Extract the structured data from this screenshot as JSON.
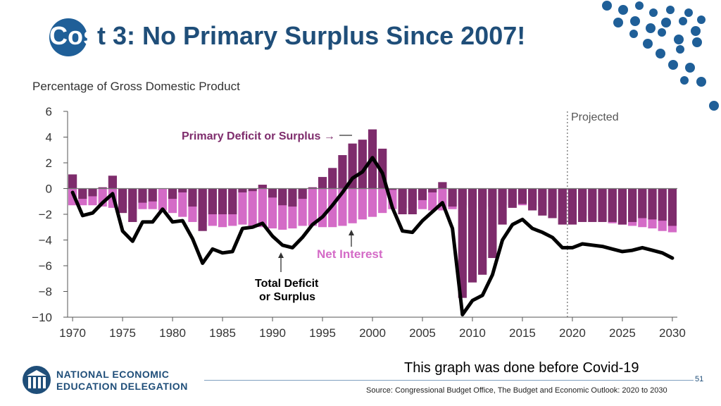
{
  "slide": {
    "title_first": "Cos",
    "title_rest": "t 3: No Primary Surplus Since 2007!",
    "note": "This graph was done before Covid-19",
    "page_number": "51",
    "source": "Source: Congressional Budget Office, The Budget and Economic Outlook: 2020 to 2030",
    "logo_line1": "NATIONAL ECONOMIC",
    "logo_line2": "EDUCATION DELEGATION",
    "colors": {
      "title": "#1f4e79",
      "badge": "#1f5f98",
      "dots": "#1f5f98"
    }
  },
  "chart_data": {
    "type": "bar",
    "ylabel": "Percentage of Gross Domestic Product",
    "ylim": [
      -10,
      6
    ],
    "yticks": [
      6,
      4,
      2,
      0,
      -2,
      -4,
      -6,
      -8,
      -10
    ],
    "ytick_labels": [
      "6",
      "4",
      "2",
      "0",
      "−2",
      "−4",
      "−6",
      "−8",
      "−10"
    ],
    "xticks": [
      1970,
      1975,
      1980,
      1985,
      1990,
      1995,
      2000,
      2005,
      2010,
      2015,
      2020,
      2025,
      2030
    ],
    "xlim": [
      1969.5,
      2030.5
    ],
    "projected_from": 2019.5,
    "projected_label": "Projected",
    "stacked": true,
    "years": [
      1970,
      1971,
      1972,
      1973,
      1974,
      1975,
      1976,
      1977,
      1978,
      1979,
      1980,
      1981,
      1982,
      1983,
      1984,
      1985,
      1986,
      1987,
      1988,
      1989,
      1990,
      1991,
      1992,
      1993,
      1994,
      1995,
      1996,
      1997,
      1998,
      1999,
      2000,
      2001,
      2002,
      2003,
      2004,
      2005,
      2006,
      2007,
      2008,
      2009,
      2010,
      2011,
      2012,
      2013,
      2014,
      2015,
      2016,
      2017,
      2018,
      2019,
      2020,
      2021,
      2022,
      2023,
      2024,
      2025,
      2026,
      2027,
      2028,
      2029,
      2030
    ],
    "series": [
      {
        "name": "Net Interest",
        "color": "#d46bc7",
        "values": [
          -1.3,
          -1.3,
          -1.3,
          -1.4,
          -1.5,
          -1.5,
          -1.6,
          -1.6,
          -1.6,
          -1.7,
          -1.9,
          -2.2,
          -2.6,
          -2.6,
          -2.9,
          -3.0,
          -2.9,
          -2.8,
          -2.9,
          -3.0,
          -3.1,
          -3.2,
          -3.1,
          -2.9,
          -2.9,
          -3.0,
          -3.0,
          -2.9,
          -2.7,
          -2.4,
          -2.2,
          -1.9,
          -1.6,
          -1.5,
          -1.5,
          -1.6,
          -1.7,
          -1.7,
          -1.6,
          -1.3,
          -1.5,
          -1.6,
          -1.4,
          -1.3,
          -1.3,
          -1.3,
          -1.3,
          -1.4,
          -1.6,
          -1.8,
          -1.9,
          -2.1,
          -2.3,
          -2.5,
          -2.7,
          -2.8,
          -2.9,
          -3.0,
          -3.1,
          -3.3,
          -3.4
        ]
      },
      {
        "name": "Primary Deficit or Surplus",
        "color": "#7e2c6c",
        "values": [
          1.1,
          -0.8,
          -0.6,
          0.1,
          1.0,
          -1.9,
          -2.6,
          -1.1,
          -1.0,
          0.0,
          -0.8,
          -0.3,
          -1.4,
          -3.3,
          -2.0,
          -2.0,
          -2.0,
          -0.3,
          -0.2,
          0.3,
          -0.7,
          -1.3,
          -1.4,
          -0.8,
          0.1,
          0.9,
          1.6,
          2.6,
          3.5,
          3.8,
          4.6,
          3.1,
          -0.1,
          -2.0,
          -2.0,
          -0.9,
          -0.3,
          0.5,
          -1.4,
          -8.5,
          -7.3,
          -6.7,
          -5.4,
          -2.8,
          -1.5,
          -1.2,
          -1.7,
          -2.1,
          -2.3,
          -2.8,
          -2.8,
          -2.6,
          -2.6,
          -2.6,
          -2.6,
          -2.8,
          -2.6,
          -2.3,
          -2.4,
          -2.5,
          -2.9
        ]
      }
    ],
    "line_series": {
      "name": "Total Deficit or Surplus",
      "color": "#000000",
      "values": [
        -0.3,
        -2.1,
        -1.9,
        -1.1,
        -0.4,
        -3.3,
        -4.1,
        -2.6,
        -2.6,
        -1.6,
        -2.6,
        -2.5,
        -3.9,
        -5.8,
        -4.7,
        -5.0,
        -4.9,
        -3.1,
        -3.0,
        -2.7,
        -3.7,
        -4.4,
        -4.6,
        -3.8,
        -2.8,
        -2.2,
        -1.3,
        -0.3,
        0.8,
        1.3,
        2.4,
        1.2,
        -1.5,
        -3.3,
        -3.4,
        -2.5,
        -1.8,
        -1.1,
        -3.1,
        -9.8,
        -8.7,
        -8.3,
        -6.7,
        -4.0,
        -2.8,
        -2.4,
        -3.1,
        -3.4,
        -3.8,
        -4.6,
        -4.6,
        -4.3,
        -4.4,
        -4.5,
        -4.7,
        -4.9,
        -4.8,
        -4.6,
        -4.8,
        -5.0,
        -5.4
      ]
    },
    "annotations": [
      {
        "text": "Primary Deficit or Surplus →",
        "color": "#7e2c6c"
      },
      {
        "text": "Net Interest",
        "color": "#d46bc7"
      },
      {
        "text": "Total Deficit",
        "color": "#000000"
      },
      {
        "text": "or Surplus",
        "color": "#000000"
      }
    ]
  }
}
